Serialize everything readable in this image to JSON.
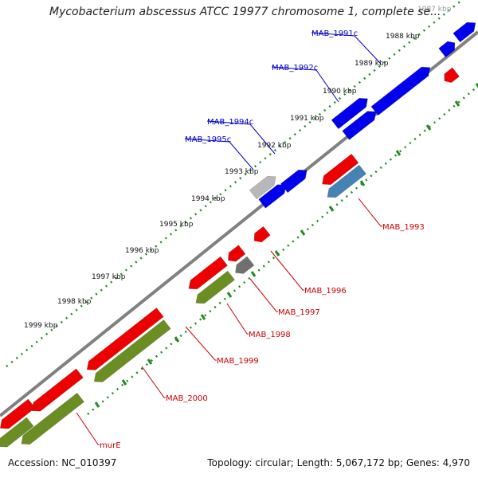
{
  "title": "Mycobacterium abscessus ATCC 19977 chromosome 1, complete se...",
  "footer": {
    "accession": "Accession: NC_010397",
    "summary": "Topology: circular; Length: 5,067,172 bp; Genes: 4,970"
  },
  "colors": {
    "forward_gene": "#0000ee",
    "reverse_gene": "#ee0000",
    "olive_gene": "#6b8e23",
    "steel_gene": "#4682b4",
    "gray_gene": "#707070",
    "light_gray_gene": "#b8b8b8",
    "backbone": "#808080",
    "tick": "#228b22"
  },
  "ticks": [
    {
      "label": "1987 kbp"
    },
    {
      "label": "1988 kbp"
    },
    {
      "label": "1989 kbp"
    },
    {
      "label": "1990 kbp"
    },
    {
      "label": "1991 kbp"
    },
    {
      "label": "1992 kbp"
    },
    {
      "label": "1993 kbp"
    },
    {
      "label": "1994 kbp"
    },
    {
      "label": "1995 kbp"
    },
    {
      "label": "1996 kbp"
    },
    {
      "label": "1997 kbp"
    },
    {
      "label": "1998 kbp"
    },
    {
      "label": "1999 kbp"
    }
  ],
  "gene_labels": [
    {
      "label": "MAB_1991c",
      "color": "#0000cc"
    },
    {
      "label": "MAB_1992c",
      "color": "#0000cc"
    },
    {
      "label": "MAB_1994c",
      "color": "#0000cc"
    },
    {
      "label": "MAB_1995c",
      "color": "#0000cc"
    },
    {
      "label": "MAB_1993",
      "color": "#cc0000"
    },
    {
      "label": "MAB_1996",
      "color": "#cc0000"
    },
    {
      "label": "MAB_1997",
      "color": "#cc0000"
    },
    {
      "label": "MAB_1998",
      "color": "#cc0000"
    },
    {
      "label": "MAB_1999",
      "color": "#cc0000"
    },
    {
      "label": "MAB_2000",
      "color": "#cc0000"
    },
    {
      "label": "murE",
      "color": "#cc0000"
    }
  ]
}
